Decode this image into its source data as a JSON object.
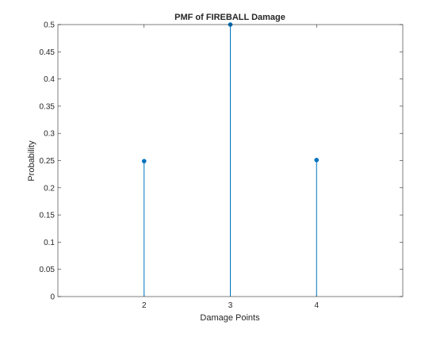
{
  "chart_data": {
    "type": "stem",
    "title": "PMF of FIREBALL Damage",
    "xlabel": "Damage Points",
    "ylabel": "Probability",
    "xlim": [
      1,
      5
    ],
    "ylim": [
      0,
      0.5
    ],
    "xticks": [
      "2",
      "3",
      "4"
    ],
    "xtick_values": [
      2,
      3,
      4
    ],
    "yticks": [
      "0",
      "0.05",
      "0.1",
      "0.15",
      "0.2",
      "0.25",
      "0.3",
      "0.35",
      "0.4",
      "0.45",
      "0.5"
    ],
    "ytick_values": [
      0,
      0.05,
      0.1,
      0.15,
      0.2,
      0.25,
      0.3,
      0.35,
      0.4,
      0.45,
      0.5
    ],
    "x": [
      2,
      3,
      4
    ],
    "y": [
      0.249,
      0.5,
      0.251
    ],
    "series_color": "#0072BD",
    "grid": false,
    "box": true
  }
}
